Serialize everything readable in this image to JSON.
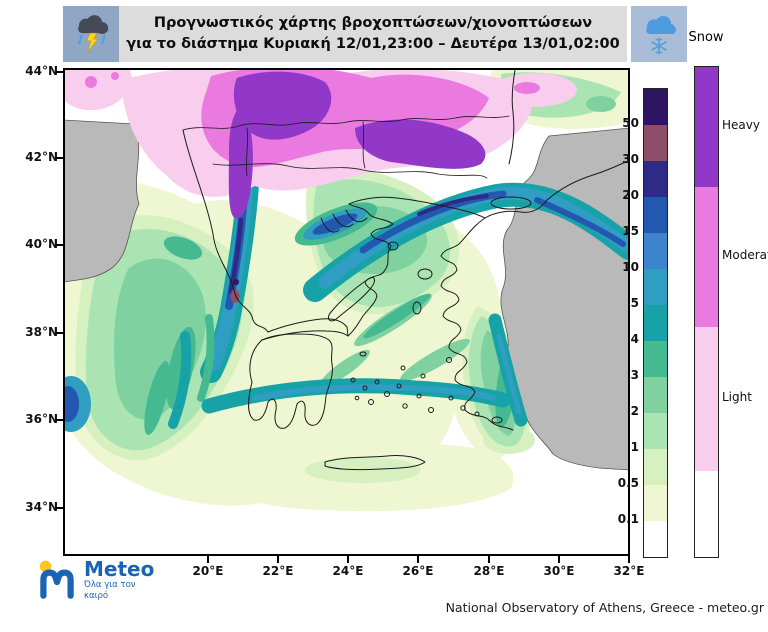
{
  "header": {
    "title_line1": "Προγνωστικός χάρτης βροχοπτώσεων/χιονοπτώσεων",
    "title_line2": "για το διάστημα Κυριακή 12/01,23:00 – Δευτέρα 13/01,02:00",
    "left_icon": "storm-cloud-lightning-icon",
    "right_icon": "snow-cloud-snowflake-icon"
  },
  "map": {
    "lat_ticks": [
      "44°N",
      "42°N",
      "40°N",
      "38°N",
      "36°N",
      "34°N"
    ],
    "lon_ticks": [
      "20°E",
      "22°E",
      "24°E",
      "26°E",
      "28°E",
      "30°E",
      "32°E"
    ],
    "sea_color": "#ffffff",
    "no_data_color": "#b9b9b9"
  },
  "legend": {
    "rain": {
      "unit_note": "precipitation scale boundaries (mm)",
      "boundary_labels": [
        "50",
        "30",
        "20",
        "15",
        "10",
        "5",
        "4",
        "3",
        "2",
        "1",
        "0.5",
        "0.1"
      ],
      "colors_top_to_bottom": [
        "#2d1562",
        "#8e4d68",
        "#2e2b87",
        "#2458b0",
        "#3c85cc",
        "#2f9ec2",
        "#17a2a8",
        "#45b98f",
        "#7fd1a0",
        "#aae4b2",
        "#d6f0c0",
        "#eff7d2",
        "#ffffff"
      ]
    },
    "snow": {
      "title": "Snow",
      "levels": [
        {
          "label": "Heavy",
          "color": "#9238c8"
        },
        {
          "label": "Moderate",
          "color": "#ea7ae0"
        },
        {
          "label": "Light",
          "color": "#f8cdee"
        },
        {
          "label": "",
          "color": "#ffffff"
        }
      ]
    }
  },
  "footer": {
    "brand": "Meteo",
    "brand_tagline": "Όλα για τον καιρό",
    "credit": "National Observatory of Athens, Greece - meteo.gr"
  }
}
